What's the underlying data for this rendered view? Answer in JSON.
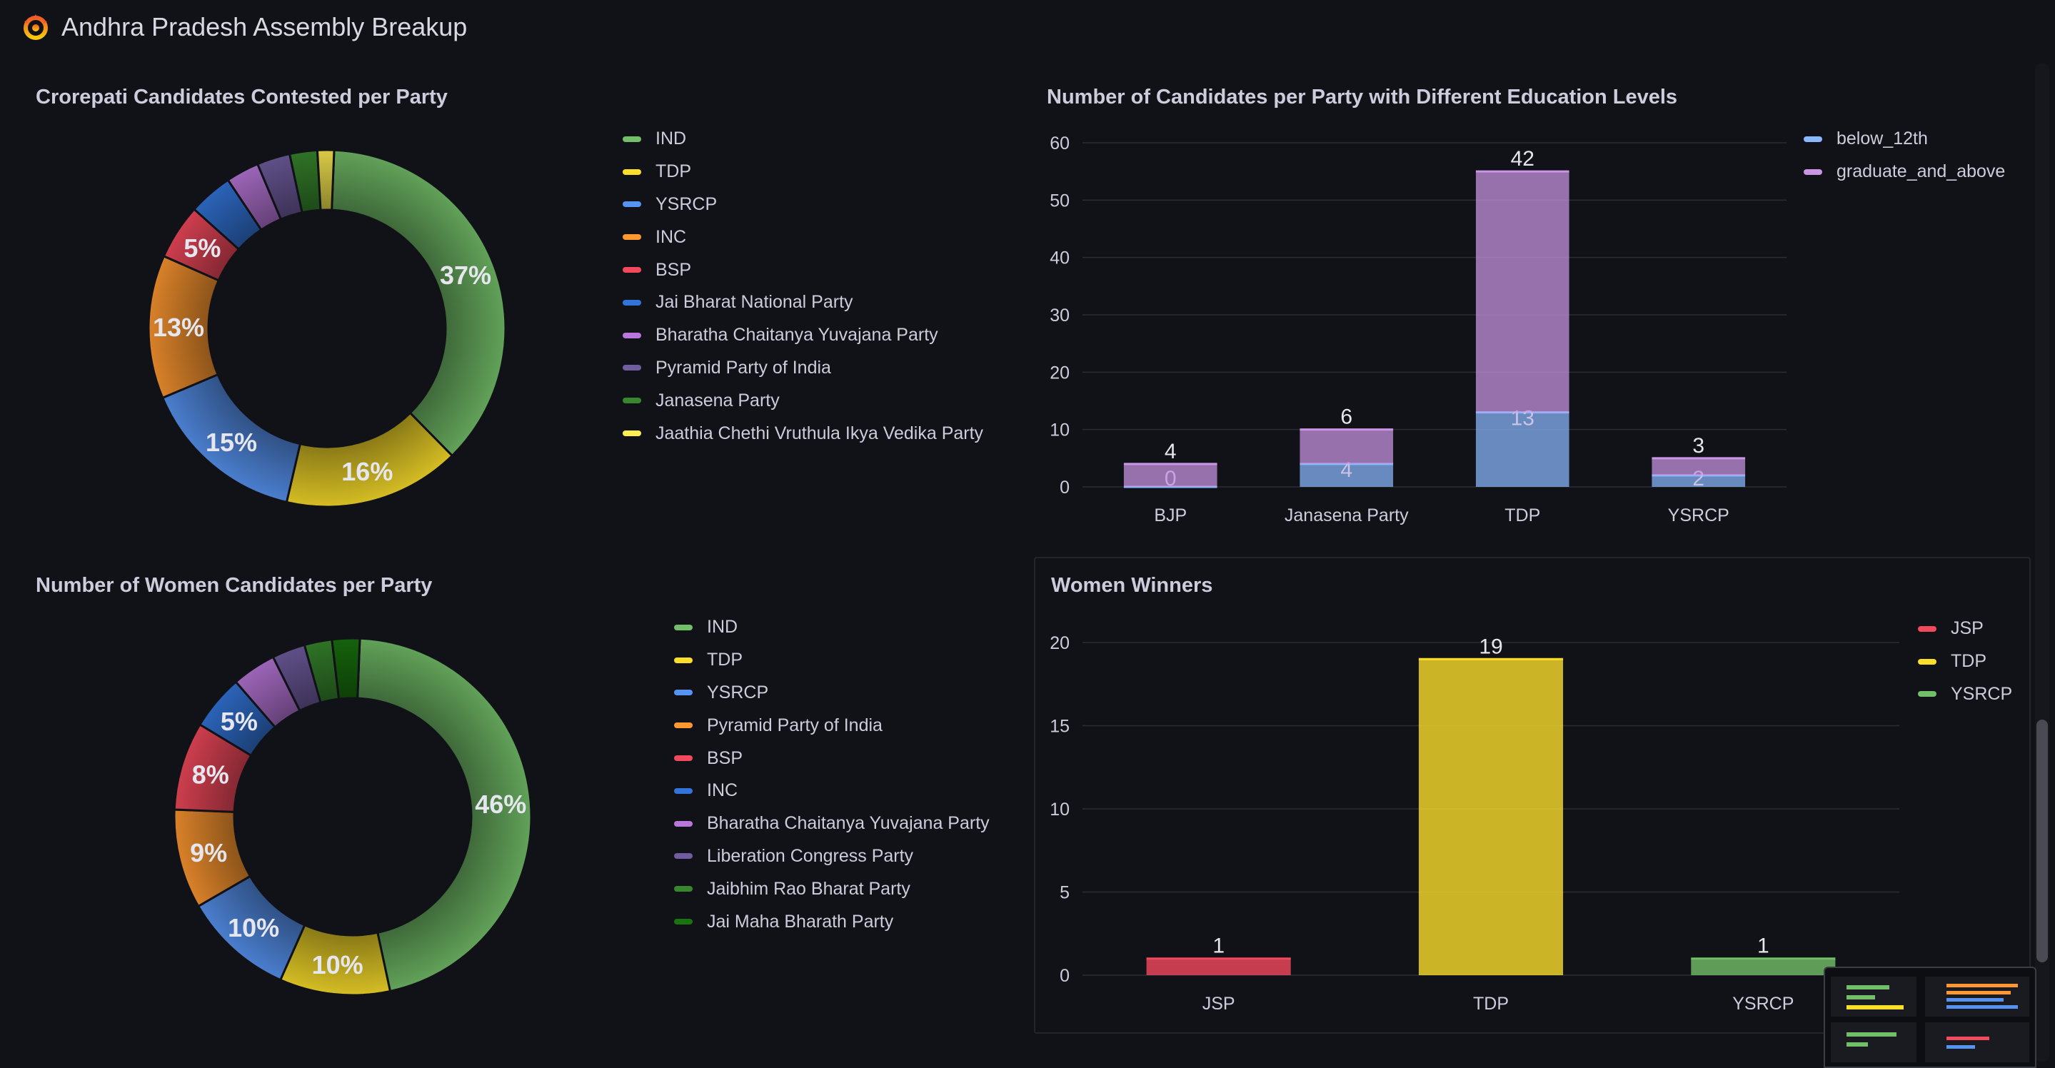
{
  "dashboard": {
    "title": "Andhra Pradesh Assembly Breakup"
  },
  "panels": {
    "crorepati": {
      "title": "Crorepati Candidates Contested per Party"
    },
    "education": {
      "title": "Number of Candidates per Party with Different Education Levels"
    },
    "women_candidates": {
      "title": "Number of Women Candidates per Party"
    },
    "women_winners": {
      "title": "Women Winners"
    }
  },
  "icons": {
    "logo": "grafana-logo-icon"
  },
  "chart_data": [
    {
      "type": "pie",
      "title": "Crorepati Candidates Contested per Party",
      "donut": true,
      "legend": "right",
      "slices": [
        {
          "label": "IND",
          "value": 37,
          "color": "#73bf69",
          "show_label": true
        },
        {
          "label": "TDP",
          "value": 16,
          "color": "#fade2a",
          "show_label": true
        },
        {
          "label": "YSRCP",
          "value": 15,
          "color": "#5794f2",
          "show_label": true
        },
        {
          "label": "INC",
          "value": 13,
          "color": "#ff9830",
          "show_label": true
        },
        {
          "label": "BSP",
          "value": 5,
          "color": "#f2495c",
          "show_label": true
        },
        {
          "label": "Jai Bharat National Party",
          "value": 4,
          "color": "#3274d9",
          "show_label": false
        },
        {
          "label": "Bharatha Chaitanya Yuvajana Party",
          "value": 3,
          "color": "#b877d9",
          "show_label": false
        },
        {
          "label": "Pyramid Party of India",
          "value": 3,
          "color": "#705da0",
          "show_label": false
        },
        {
          "label": "Janasena Party",
          "value": 2.5,
          "color": "#37872d",
          "show_label": false
        },
        {
          "label": "Jaathia Chethi Vruthula Ikya Vedika Party",
          "value": 1.5,
          "color": "#ffee52",
          "show_label": false
        }
      ]
    },
    {
      "type": "bar",
      "stacked": true,
      "title": "Number of Candidates per Party with Different Education Levels",
      "categories": [
        "BJP",
        "Janasena Party",
        "TDP",
        "YSRCP"
      ],
      "ylim": [
        0,
        60
      ],
      "yticks": [
        0,
        10,
        20,
        30,
        40,
        50,
        60
      ],
      "grid": true,
      "legend": "top-right",
      "series": [
        {
          "name": "below_12th",
          "values": [
            0,
            4,
            13,
            2
          ],
          "color": "#8ab8ff"
        },
        {
          "name": "graduate_and_above",
          "values": [
            4,
            6,
            42,
            3
          ],
          "color": "#ca95e5"
        }
      ]
    },
    {
      "type": "pie",
      "title": "Number of Women Candidates per Party",
      "donut": true,
      "legend": "right",
      "slices": [
        {
          "label": "IND",
          "value": 46,
          "color": "#73bf69",
          "show_label": true
        },
        {
          "label": "TDP",
          "value": 10,
          "color": "#fade2a",
          "show_label": true
        },
        {
          "label": "YSRCP",
          "value": 10,
          "color": "#5794f2",
          "show_label": true
        },
        {
          "label": "Pyramid Party of India",
          "value": 9,
          "color": "#ff9830",
          "show_label": true
        },
        {
          "label": "BSP",
          "value": 8,
          "color": "#f2495c",
          "show_label": true
        },
        {
          "label": "INC",
          "value": 5,
          "color": "#3274d9",
          "show_label": true
        },
        {
          "label": "Bharatha Chaitanya Yuvajana Party",
          "value": 4,
          "color": "#b877d9",
          "show_label": false
        },
        {
          "label": "Liberation Congress Party",
          "value": 3,
          "color": "#705da0",
          "show_label": false
        },
        {
          "label": "Jaibhim Rao Bharat Party",
          "value": 2.5,
          "color": "#37872d",
          "show_label": false
        },
        {
          "label": "Jai Maha Bharath Party",
          "value": 2.5,
          "color": "#19730e",
          "show_label": false
        }
      ]
    },
    {
      "type": "bar",
      "title": "Women Winners",
      "categories": [
        "JSP",
        "TDP",
        "YSRCP"
      ],
      "values": [
        1,
        19,
        1
      ],
      "colors": [
        "#f2495c",
        "#fade2a",
        "#73bf69"
      ],
      "ylim": [
        0,
        20
      ],
      "yticks": [
        0,
        5,
        10,
        15,
        20
      ],
      "grid": true,
      "legend": "top-right",
      "series": [
        {
          "name": "JSP",
          "color": "#f2495c"
        },
        {
          "name": "TDP",
          "color": "#fade2a"
        },
        {
          "name": "YSRCP",
          "color": "#73bf69"
        }
      ]
    }
  ]
}
